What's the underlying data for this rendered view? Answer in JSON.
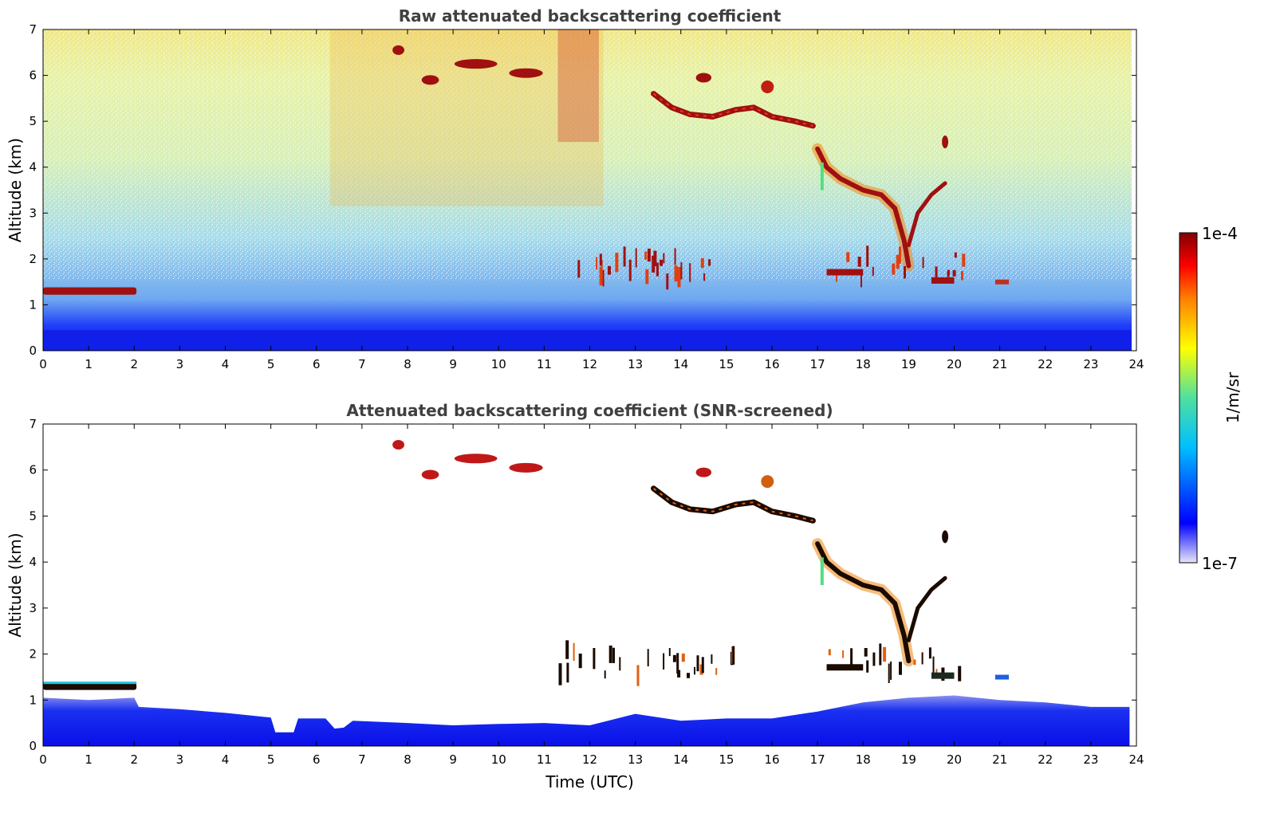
{
  "chart_data": [
    {
      "type": "heatmap",
      "title": "Raw attenuated backscattering coefficient",
      "xlabel": "",
      "ylabel": "Altitude (km)",
      "xlim": [
        0,
        24
      ],
      "ylim": [
        0,
        7
      ],
      "x_ticks": [
        "0",
        "1",
        "2",
        "3",
        "4",
        "5",
        "6",
        "7",
        "8",
        "9",
        "10",
        "11",
        "12",
        "13",
        "14",
        "15",
        "16",
        "17",
        "18",
        "19",
        "20",
        "21",
        "22",
        "23",
        "24"
      ],
      "y_ticks": [
        "0",
        "1",
        "2",
        "3",
        "4",
        "5",
        "6",
        "7"
      ],
      "colorscale": "jet",
      "log_scale": true,
      "cloud_features": [
        {
          "name": "low cloud",
          "time_range": [
            0,
            2
          ],
          "altitude_km": 1.3
        },
        {
          "name": "cirrus",
          "time_range": [
            7.8,
            10.9
          ],
          "altitude_km": 6.1
        },
        {
          "name": "cirrus",
          "time_range": [
            13.4,
            16.9
          ],
          "altitude_km": 5.2
        },
        {
          "name": "descending layer",
          "time_range": [
            17,
            19.9
          ],
          "altitude_km": [
            4.4,
            1.8
          ]
        },
        {
          "name": "broken clouds",
          "time_range": [
            11.3,
            14.5
          ],
          "altitude_km": 1.8
        },
        {
          "name": "broken clouds",
          "time_range": [
            17.1,
            20.3
          ],
          "altitude_km": 1.6
        }
      ]
    },
    {
      "type": "heatmap",
      "title": "Attenuated backscattering coefficient (SNR-screened)",
      "xlabel": "Time (UTC)",
      "ylabel": "Altitude (km)",
      "xlim": [
        0,
        24
      ],
      "ylim": [
        0,
        7
      ],
      "x_ticks": [
        "0",
        "1",
        "2",
        "3",
        "4",
        "5",
        "6",
        "7",
        "8",
        "9",
        "10",
        "11",
        "12",
        "13",
        "14",
        "15",
        "16",
        "17",
        "18",
        "19",
        "20",
        "21",
        "22",
        "23",
        "24"
      ],
      "y_ticks": [
        "0",
        "1",
        "2",
        "3",
        "4",
        "5",
        "6",
        "7"
      ],
      "colorscale": "jet",
      "log_scale": true
    }
  ],
  "colorbar": {
    "label": "1/m/sr",
    "max_label": "1e-4",
    "min_label": "1e-7",
    "range": [
      1e-07,
      0.0001
    ],
    "colors": [
      "#e6e6f8",
      "#0000ff",
      "#00bfff",
      "#4fe0a0",
      "#ffff00",
      "#ff8000",
      "#ff0000",
      "#800000"
    ]
  },
  "colors": {
    "title": "#404040",
    "axis": "#000000",
    "background": "#ffffff"
  }
}
